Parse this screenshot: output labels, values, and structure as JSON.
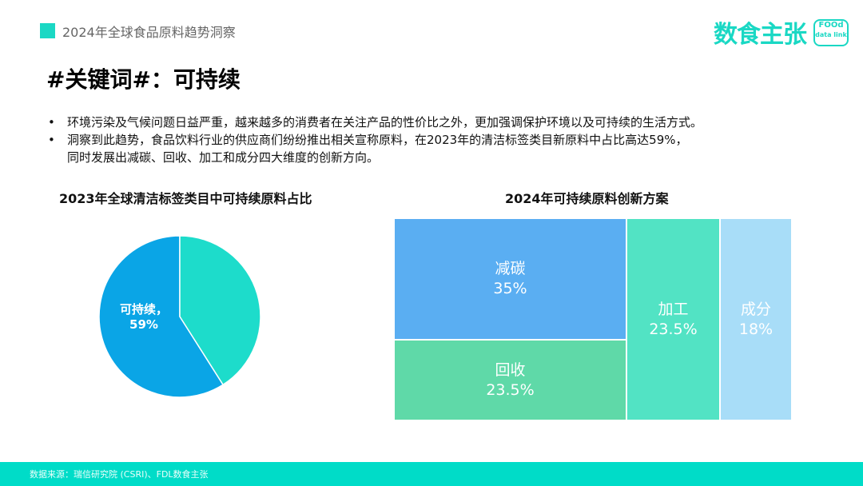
{
  "header": {
    "title": "2024年全球食品原料趋势洞察",
    "logo_cn": "数食主张",
    "logo_en1": "FOOd",
    "logo_en2": "data link"
  },
  "title": "#关键词#：可持续",
  "bullets": [
    "环境污染及气候问题日益严重，越来越多的消费者在关注产品的性价比之外，更加强调保护环境以及可持续的生活方式。",
    "洞察到此趋势，食品饮料行业的供应商们纷纷推出相关宣称原料，在2023年的清洁标签类目新原料中占比高达59%，同时发展出减碳、回收、加工和成分四大维度的创新方向。"
  ],
  "bullet_lines": {
    "b2a": "洞察到此趋势，食品饮料行业的供应商们纷纷推出相关宣称原料，在2023年的清洁标签类目新原料中占比高达59%，",
    "b2b": "同时发展出减碳、回收、加工和成分四大维度的创新方向。"
  },
  "chart_data": [
    {
      "type": "pie",
      "title": "2023年全球清洁标签类目中可持续原料占比",
      "slices": [
        {
          "label": "可持续",
          "value": 59,
          "data_label": "可持续，",
          "pct_label": "59%",
          "color": "#0aa5e6"
        },
        {
          "label": "",
          "value": 41,
          "color": "#1ddccb"
        }
      ]
    },
    {
      "type": "treemap",
      "title": "2024年可持续原料创新方案",
      "items": [
        {
          "label": "减碳",
          "value": 35,
          "pct": "35%",
          "color": "#5aaef2"
        },
        {
          "label": "回收",
          "value": 23.5,
          "pct": "23.5%",
          "color": "#5fd9a8"
        },
        {
          "label": "加工",
          "value": 23.5,
          "pct": "23.5%",
          "color": "#52e3c4"
        },
        {
          "label": "成分",
          "value": 18,
          "pct": "18%",
          "color": "#a8ddf8"
        }
      ]
    }
  ],
  "footer": {
    "source": "数据来源：瑞信研究院 (CSRI)、FDL数食主张"
  }
}
